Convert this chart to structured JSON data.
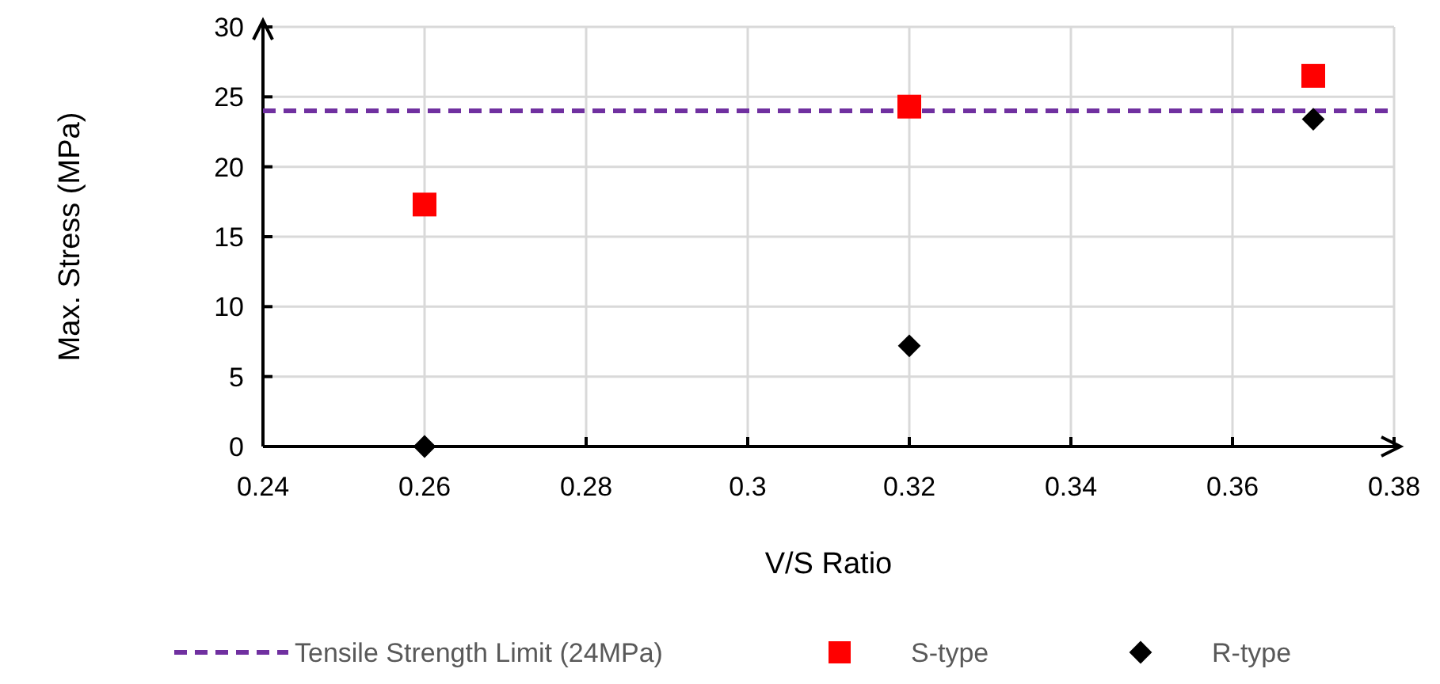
{
  "chart_data": {
    "type": "scatter",
    "xlabel": "V/S Ratio",
    "ylabel": "Max. Stress (MPa)",
    "xlim": [
      0.24,
      0.38
    ],
    "ylim": [
      0,
      30
    ],
    "xticks": [
      0.24,
      0.26,
      0.28,
      0.3,
      0.32,
      0.34,
      0.36,
      0.38
    ],
    "yticks": [
      0,
      5,
      10,
      15,
      20,
      25,
      30
    ],
    "grid": true,
    "legend": "bottom",
    "series": [
      {
        "name": "Tensile Strength Limit (24MPa)",
        "type": "line",
        "color": "#7030a0",
        "line_style": "dashed",
        "marker": "none",
        "x": [
          0.24,
          0.38
        ],
        "values": [
          24,
          24
        ]
      },
      {
        "name": "S-type",
        "color": "#ff0000",
        "marker": "square",
        "x": [
          0.26,
          0.32,
          0.37
        ],
        "values": [
          17.3,
          24.3,
          26.5
        ]
      },
      {
        "name": "R-type",
        "color": "#000000",
        "marker": "diamond",
        "x": [
          0.26,
          0.32,
          0.37
        ],
        "values": [
          0,
          7.2,
          23.4
        ]
      }
    ]
  }
}
